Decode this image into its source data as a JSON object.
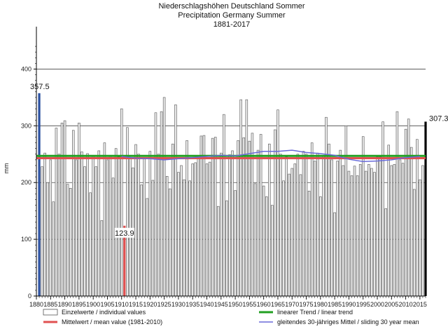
{
  "chart_data": {
    "type": "bar",
    "title_lines": [
      "Niederschlagshöhen Deutschland Sommer",
      "Precipitation Germany Summer",
      "1881-2017"
    ],
    "ylabel": "mm",
    "xlabel": "",
    "xlim": [
      1880,
      2017
    ],
    "ylim": [
      0,
      450
    ],
    "yticks": [
      0,
      100,
      200,
      300,
      400
    ],
    "xticks": [
      1880,
      1885,
      1890,
      1895,
      1900,
      1905,
      1910,
      1915,
      1920,
      1925,
      1930,
      1935,
      1940,
      1945,
      1950,
      1955,
      1960,
      1965,
      1970,
      1975,
      1980,
      1985,
      1990,
      1995,
      2000,
      2005,
      2010,
      2015
    ],
    "grid": "horizontal",
    "years_start": 1881,
    "values": [
      357.5,
      228,
      252,
      200,
      240,
      166,
      296,
      250,
      305,
      309,
      197,
      190,
      292,
      240,
      305,
      254,
      228,
      251,
      182,
      247,
      228,
      256,
      133,
      270,
      240,
      248,
      208,
      260,
      245,
      330,
      123.9,
      297,
      244,
      226,
      267,
      250,
      196,
      243,
      172,
      255,
      204,
      323,
      250,
      325,
      350,
      211,
      189,
      268,
      337,
      218,
      230,
      205,
      274,
      203,
      233,
      235,
      247,
      282,
      283,
      233,
      236,
      278,
      280,
      158,
      252,
      320,
      168,
      249,
      256,
      186,
      274,
      346,
      279,
      346,
      273,
      287,
      198,
      257,
      285,
      194,
      175,
      268,
      160,
      293,
      328,
      250,
      203,
      245,
      215,
      225,
      233,
      250,
      214,
      255,
      250,
      185,
      270,
      238,
      252,
      175,
      248,
      315,
      268,
      240,
      147,
      238,
      257,
      230,
      300,
      220,
      212,
      229,
      212,
      232,
      281,
      220,
      232,
      225,
      218,
      245,
      245,
      307,
      154,
      266,
      230,
      232,
      325,
      240,
      234,
      294,
      312,
      262,
      188,
      276,
      205,
      230,
      307.3
    ],
    "annotations": {
      "max_label": "357.5",
      "min_label": "123.9",
      "last_label": "307.3"
    },
    "highlight_bars": [
      {
        "year": 1881,
        "color": "#2a4fa0"
      },
      {
        "year": 1911,
        "color": "#e05050"
      },
      {
        "year": 2017,
        "color": "#000000"
      }
    ],
    "mean_value": 243,
    "trend": {
      "start": 247,
      "end": 247
    },
    "sliding_mean": {
      "x": [
        1910,
        1915,
        1920,
        1925,
        1930,
        1935,
        1940,
        1945,
        1950,
        1955,
        1960,
        1965,
        1970,
        1975,
        1980,
        1985,
        1990,
        1995,
        2000,
        2005,
        2010,
        2015
      ],
      "y": [
        246,
        243,
        242,
        240,
        242,
        244,
        246,
        248,
        247,
        251,
        255,
        255,
        257,
        253,
        251,
        248,
        241,
        237,
        238,
        240,
        244,
        246
      ]
    },
    "legend": [
      {
        "label": "Einzelwerte / individual values",
        "kind": "box"
      },
      {
        "label": "Mittelwert / mean value (1981-2010)",
        "kind": "line",
        "color": "#e05050"
      },
      {
        "label": "linearer Trend / linear trend",
        "kind": "line",
        "color": "#22a022"
      },
      {
        "label": "gleitendes 30-jähriges Mittel / sliding 30 year mean",
        "kind": "line",
        "color": "#6a6ad8"
      }
    ],
    "legend_placement": "bottom"
  }
}
